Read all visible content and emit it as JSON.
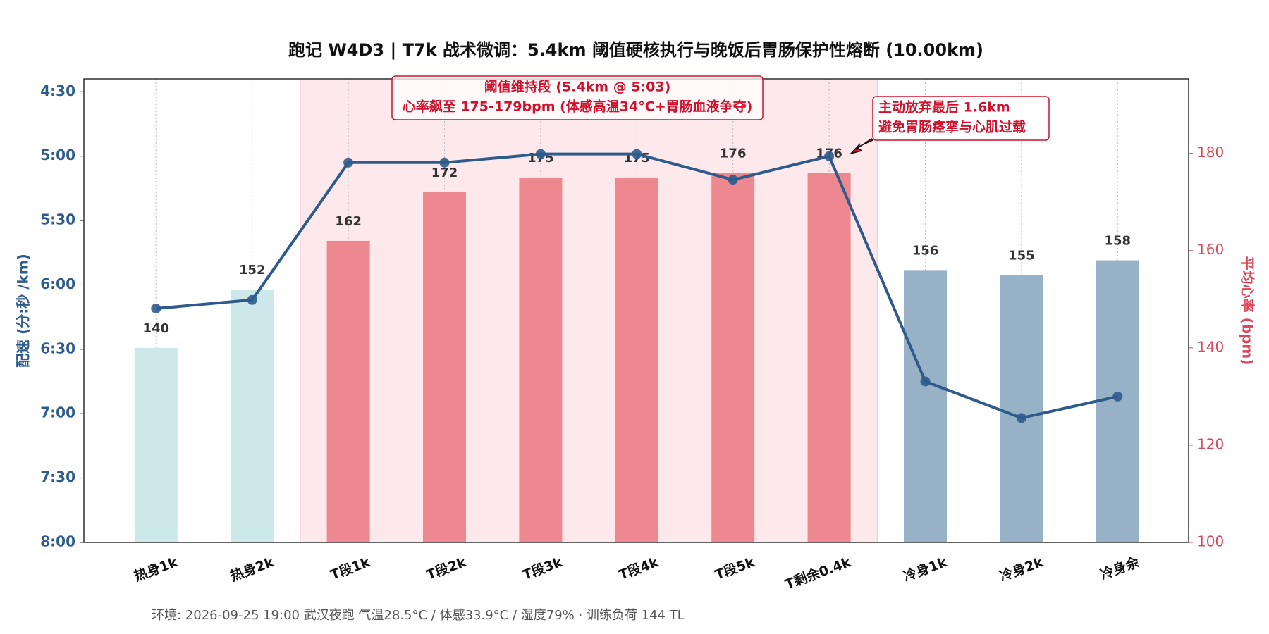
{
  "chart_data": {
    "type": "bar_line",
    "title": "跑记 W4D3 | T7k 战术微调：5.4km 阈值硬核执行与晚饭后胃肠保护性熔断 (10.00km)",
    "footer": "环境: 2026-09-25 19:00 武汉夜跑 气温28.5°C / 体感33.9°C / 湿度79% · 训练负荷 144 TL",
    "y_label": "配速 (分:秒 /km)",
    "y2_label": "平均心率 (bpm)",
    "annotations": [
      {
        "lines": [
          "阈值维持段 (5.4km @ 5:03)",
          "心率飙至 175-179bpm (体感高温34°C+胃肠血液争夺)"
        ]
      },
      {
        "lines": [
          "主动放弃最后 1.6km",
          "避免胃肠痉挛与心肌过载"
        ]
      }
    ],
    "categories": [
      "热身1k",
      "热身2k",
      "T段1k",
      "T段2k",
      "T段3k",
      "T段4k",
      "T段5k",
      "T剩余0.4k",
      "冷身1k",
      "冷身2k",
      "冷身余"
    ],
    "series": [
      {
        "name": "平均心率",
        "axis": "y2",
        "kind": "bar",
        "colors": [
          "#cce8ea",
          "#cce8ea",
          "#ee8890",
          "#ee8890",
          "#ee8890",
          "#ee8890",
          "#ee8890",
          "#ee8890",
          "#97b2c6",
          "#97b2c6",
          "#97b2c6"
        ],
        "values": [
          140,
          152,
          162,
          172,
          175,
          175,
          176,
          176,
          156,
          155,
          158
        ]
      },
      {
        "name": "配速",
        "axis": "y",
        "kind": "line",
        "color": "#2e5b8c",
        "values": [
          371,
          367,
          303,
          303,
          299,
          299,
          311,
          300,
          405,
          422,
          412
        ]
      }
    ],
    "ylim": [
      480,
      264
    ],
    "yticks": [
      {
        "value": 270,
        "label": "4:30"
      },
      {
        "value": 300,
        "label": "5:00"
      },
      {
        "value": 330,
        "label": "5:30"
      },
      {
        "value": 360,
        "label": "6:00"
      },
      {
        "value": 390,
        "label": "6:30"
      },
      {
        "value": 420,
        "label": "7:00"
      },
      {
        "value": 450,
        "label": "7:30"
      },
      {
        "value": 480,
        "label": "8:00"
      }
    ],
    "y2lim": [
      100,
      195.3
    ],
    "y2ticks": [
      100,
      120,
      140,
      160,
      180
    ],
    "grid": "x"
  }
}
